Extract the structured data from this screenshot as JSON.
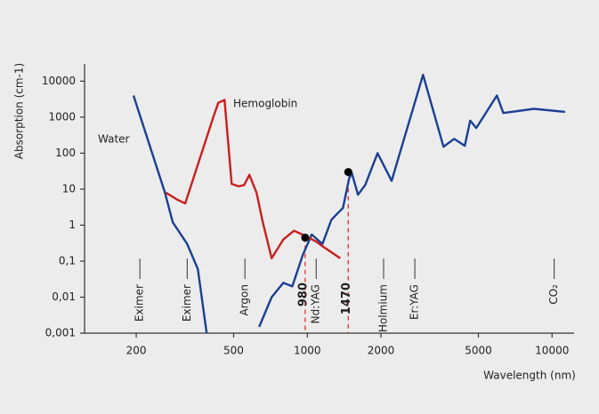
{
  "chart_data": {
    "type": "line",
    "y_label": "Absorption (cm-1)",
    "x_label": "Wavelength (nm)",
    "xscale": "log",
    "yscale": "log",
    "xlim": [
      123,
      12300
    ],
    "ylim": [
      0.001,
      30000
    ],
    "xticks": [
      200,
      500,
      1000,
      2000,
      5000,
      10000
    ],
    "yticks": [
      {
        "value": 0.001,
        "label": "0,001"
      },
      {
        "value": 0.01,
        "label": "0,01"
      },
      {
        "value": 0.1,
        "label": "0,1"
      },
      1,
      10,
      100,
      1000,
      10000
    ],
    "series": [
      {
        "name": "Water",
        "color": "#1b3f93",
        "x": [
          195,
          262,
          282,
          323,
          357,
          388,
          null,
          636,
          715,
          798,
          868,
          959,
          1042,
          1153,
          1254,
          1318,
          1398,
          1482,
          1520,
          1611,
          1723,
          1937,
          2210,
          2970,
          3600,
          3980,
          4400,
          4630,
          4900,
          5950,
          6320,
          8440,
          11300
        ],
        "values": [
          4000,
          8,
          1.2,
          0.3,
          0.06,
          0.001,
          null,
          0.0015,
          0.01,
          0.025,
          0.02,
          0.15,
          0.55,
          0.3,
          1.4,
          2,
          3,
          20,
          28,
          7,
          13,
          100,
          17,
          15000,
          150,
          250,
          160,
          800,
          500,
          4000,
          1300,
          1700,
          1400
        ]
      },
      {
        "name": "Hemoglobin",
        "color": "#c8201e",
        "x": [
          264,
          296,
          317,
          415,
          433,
          459,
          491,
          525,
          552,
          580,
          620,
          658,
          715,
          798,
          882,
          983,
          1087,
          1162,
          1363
        ],
        "values": [
          8,
          5,
          4,
          1100,
          2500,
          3000,
          14,
          12,
          13,
          25,
          8,
          1.2,
          0.12,
          0.4,
          0.7,
          0.5,
          0.35,
          0.25,
          0.12
        ]
      }
    ],
    "laser_lines": [
      {
        "x": 980,
        "y": 0.45
      },
      {
        "x": 1470,
        "y": 30
      }
    ],
    "lasers": [
      {
        "name": "Eximer",
        "x": 207
      },
      {
        "name": "Eximer",
        "x": 323
      },
      {
        "name": "Argon",
        "x": 556
      },
      {
        "name": "Nd:YAG",
        "x": 1087
      },
      {
        "name": "Holmium",
        "x": 2050
      },
      {
        "name": "Er:YAG",
        "x": 2750
      },
      {
        "name": "CO₂",
        "x": 10200
      }
    ]
  }
}
